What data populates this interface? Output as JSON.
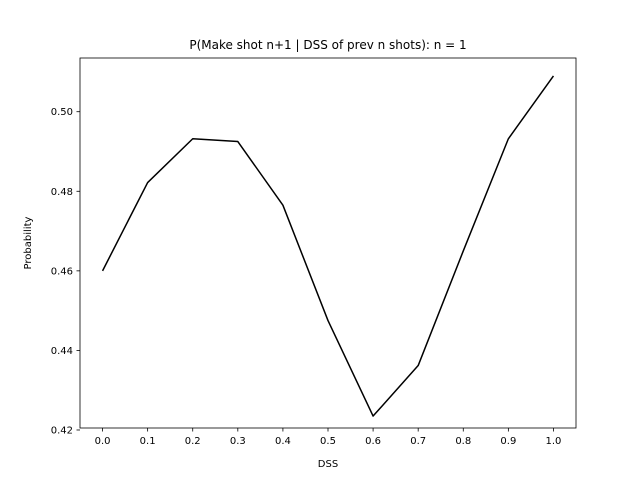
{
  "chart_data": {
    "type": "line",
    "title": "P(Make shot n+1 | DSS of prev n shots): n = 1",
    "xlabel": "DSS",
    "ylabel": "Probability",
    "xlim": [
      -0.05,
      1.05
    ],
    "ylim": [
      0.4205,
      0.5135
    ],
    "xticks": [
      "0.0",
      "0.1",
      "0.2",
      "0.3",
      "0.4",
      "0.5",
      "0.6",
      "0.7",
      "0.8",
      "0.9",
      "1.0"
    ],
    "yticks": [
      "0.42",
      "0.44",
      "0.46",
      "0.48",
      "0.50"
    ],
    "grid": false,
    "series": [
      {
        "color": "#000000",
        "x": [
          0.0,
          0.1,
          0.2,
          0.3,
          0.4,
          0.5,
          0.6,
          0.7,
          0.8,
          0.9,
          1.0
        ],
        "y": [
          0.46,
          0.4822,
          0.4932,
          0.4925,
          0.4765,
          0.4475,
          0.4235,
          0.4362,
          0.465,
          0.4932,
          0.509
        ]
      }
    ]
  }
}
